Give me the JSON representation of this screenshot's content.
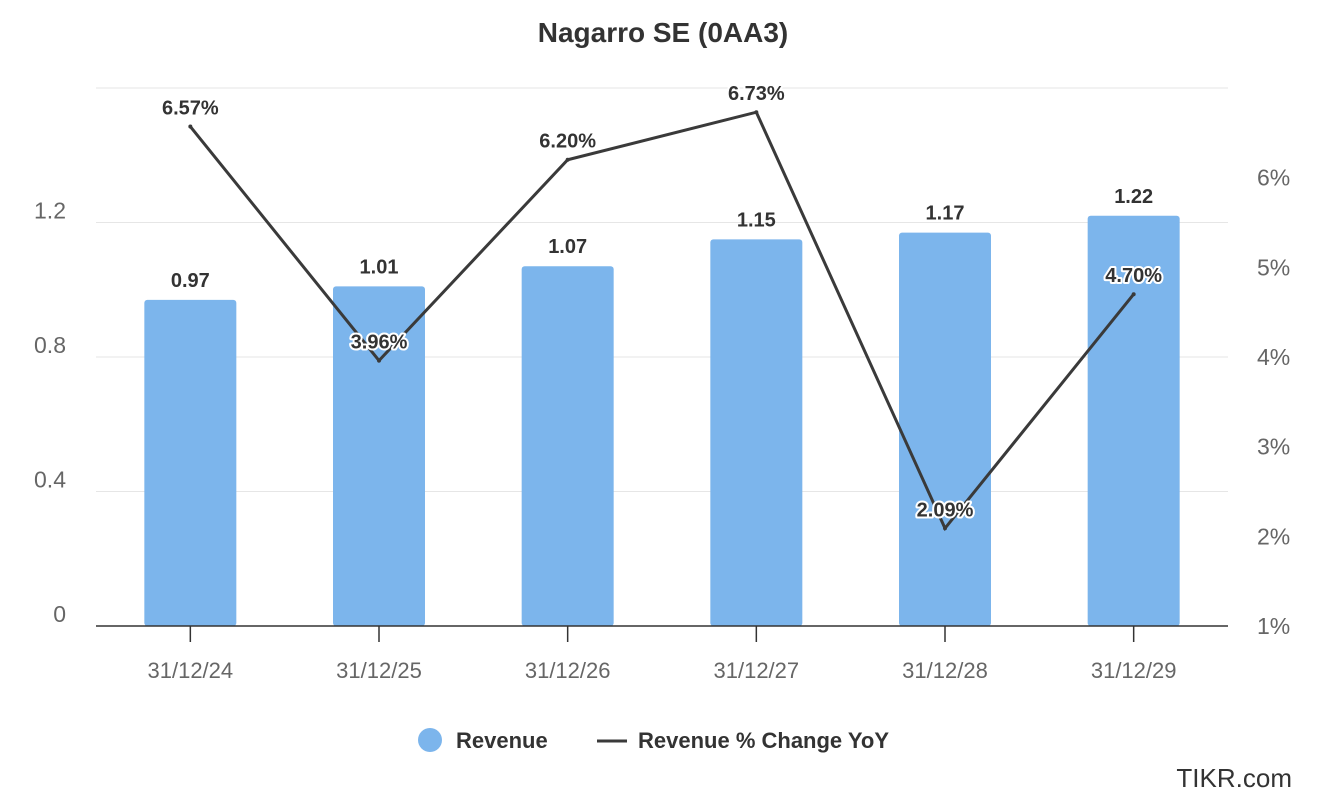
{
  "chart_data": {
    "type": "bar",
    "title": "Nagarro SE (0AA3)",
    "categories": [
      "31/12/24",
      "31/12/25",
      "31/12/26",
      "31/12/27",
      "31/12/28",
      "31/12/29"
    ],
    "series": [
      {
        "name": "Revenue",
        "type": "bar",
        "axis": "left",
        "color": "#7cb5ec",
        "values": [
          0.97,
          1.01,
          1.07,
          1.15,
          1.17,
          1.22
        ],
        "labels": [
          "0.97",
          "1.01",
          "1.07",
          "1.15",
          "1.17",
          "1.22"
        ]
      },
      {
        "name": "Revenue % Change YoY",
        "type": "line",
        "axis": "right",
        "color": "#3a3a3a",
        "values": [
          6.57,
          3.96,
          6.2,
          6.73,
          2.09,
          4.7
        ],
        "labels": [
          "6.57%",
          "3.96%",
          "6.20%",
          "6.73%",
          "2.09%",
          "4.70%"
        ]
      }
    ],
    "y_left": {
      "ticks": [
        "0",
        "0.4",
        "0.8",
        "1.2"
      ],
      "tick_values": [
        0,
        0.4,
        0.8,
        1.2
      ],
      "range": [
        0,
        1.6
      ]
    },
    "y_right": {
      "ticks": [
        "1%",
        "2%",
        "3%",
        "4%",
        "5%",
        "6%"
      ],
      "tick_values": [
        1,
        2,
        3,
        4,
        5,
        6
      ],
      "range": [
        1,
        7
      ]
    },
    "grid": true,
    "legend_position": "bottom-center"
  },
  "credit": "TIKR.com"
}
